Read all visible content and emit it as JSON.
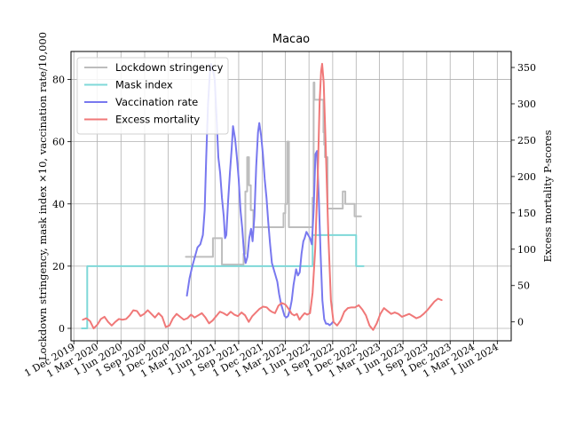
{
  "chart_data": {
    "type": "line",
    "title": "Macao",
    "ylabel_left": "Lockdown stringency, mask index ×10, vaccination rate/10,000",
    "ylabel_right": "Excess mortality P-scores",
    "ylim_left": [
      -4,
      89
    ],
    "ylim_right": [
      -26,
      372
    ],
    "yticks_left": [
      0,
      20,
      40,
      60,
      80
    ],
    "yticks_right": [
      0,
      50,
      100,
      150,
      200,
      250,
      300,
      350
    ],
    "xlim": [
      "2019-11-20",
      "2024-07-25"
    ],
    "xticks": [
      {
        "date": "2019-12-01",
        "label": "1 Dec 2019"
      },
      {
        "date": "2020-03-01",
        "label": "1 Mar 2020"
      },
      {
        "date": "2020-06-01",
        "label": "1 Jun 2020"
      },
      {
        "date": "2020-09-01",
        "label": "1 Sep 2020"
      },
      {
        "date": "2020-12-01",
        "label": "1 Dec 2020"
      },
      {
        "date": "2021-03-01",
        "label": "1 Mar 2021"
      },
      {
        "date": "2021-06-01",
        "label": "1 Jun 2021"
      },
      {
        "date": "2021-09-01",
        "label": "1 Sep 2021"
      },
      {
        "date": "2021-12-01",
        "label": "1 Dec 2021"
      },
      {
        "date": "2022-03-01",
        "label": "1 Mar 2022"
      },
      {
        "date": "2022-06-01",
        "label": "1 Jun 2022"
      },
      {
        "date": "2022-09-01",
        "label": "1 Sep 2022"
      },
      {
        "date": "2022-12-01",
        "label": "1 Dec 2022"
      },
      {
        "date": "2023-03-01",
        "label": "1 Mar 2023"
      },
      {
        "date": "2023-06-01",
        "label": "1 Jun 2023"
      },
      {
        "date": "2023-09-01",
        "label": "1 Sep 2023"
      },
      {
        "date": "2023-12-01",
        "label": "1 Dec 2023"
      },
      {
        "date": "2024-03-01",
        "label": "1 Mar 2024"
      },
      {
        "date": "2024-06-01",
        "label": "1 Jun 2024"
      }
    ],
    "grid": true,
    "legend_position": "top-left",
    "series": [
      {
        "name": "Lockdown stringency",
        "color": "#bdbdbd",
        "axis": "left",
        "step": true,
        "points": [
          [
            "2021-02-08",
            23
          ],
          [
            "2021-05-24",
            23
          ],
          [
            "2021-05-24",
            29
          ],
          [
            "2021-06-28",
            29
          ],
          [
            "2021-06-28",
            20.5
          ],
          [
            "2021-09-20",
            20.5
          ],
          [
            "2021-09-20",
            24
          ],
          [
            "2021-09-27",
            24
          ],
          [
            "2021-09-27",
            44
          ],
          [
            "2021-10-04",
            44
          ],
          [
            "2021-10-04",
            55
          ],
          [
            "2021-10-11",
            55
          ],
          [
            "2021-10-11",
            46
          ],
          [
            "2021-10-18",
            46
          ],
          [
            "2021-10-18",
            38
          ],
          [
            "2021-10-28",
            38
          ],
          [
            "2021-10-28",
            32.5
          ],
          [
            "2022-02-22",
            32.5
          ],
          [
            "2022-02-22",
            37
          ],
          [
            "2022-03-01",
            37
          ],
          [
            "2022-03-01",
            40
          ],
          [
            "2022-03-08",
            40
          ],
          [
            "2022-03-08",
            60
          ],
          [
            "2022-03-15",
            60
          ],
          [
            "2022-03-15",
            32.5
          ],
          [
            "2022-06-15",
            32.5
          ],
          [
            "2022-06-15",
            42
          ],
          [
            "2022-06-19",
            42
          ],
          [
            "2022-06-19",
            79
          ],
          [
            "2022-06-22",
            79
          ],
          [
            "2022-06-22",
            73.5
          ],
          [
            "2022-07-27",
            73.5
          ],
          [
            "2022-07-27",
            63
          ],
          [
            "2022-07-30",
            63
          ],
          [
            "2022-07-30",
            59
          ],
          [
            "2022-08-02",
            59
          ],
          [
            "2022-08-02",
            55
          ],
          [
            "2022-08-12",
            55
          ],
          [
            "2022-08-12",
            38.5
          ],
          [
            "2022-10-10",
            38.5
          ],
          [
            "2022-10-10",
            44
          ],
          [
            "2022-10-20",
            44
          ],
          [
            "2022-10-20",
            40
          ],
          [
            "2022-11-25",
            40
          ],
          [
            "2022-11-25",
            36
          ],
          [
            "2022-12-20",
            36
          ]
        ]
      },
      {
        "name": "Mask index",
        "color": "#7fd8d8",
        "axis": "left",
        "step": true,
        "points": [
          [
            "2020-01-01",
            0
          ],
          [
            "2020-01-22",
            0
          ],
          [
            "2020-01-22",
            20
          ],
          [
            "2022-06-15",
            20
          ],
          [
            "2022-06-15",
            30
          ],
          [
            "2022-12-01",
            30
          ],
          [
            "2022-12-01",
            20
          ],
          [
            "2022-12-30",
            20
          ]
        ]
      },
      {
        "name": "Vaccination rate",
        "color": "#7878ef",
        "axis": "left",
        "step": false,
        "points": [
          [
            "2021-02-12",
            10.5
          ],
          [
            "2021-02-22",
            16
          ],
          [
            "2021-03-05",
            20
          ],
          [
            "2021-03-15",
            23
          ],
          [
            "2021-03-25",
            26
          ],
          [
            "2021-04-05",
            27
          ],
          [
            "2021-04-15",
            30
          ],
          [
            "2021-04-22",
            38
          ],
          [
            "2021-04-28",
            55
          ],
          [
            "2021-05-05",
            72
          ],
          [
            "2021-05-12",
            82
          ],
          [
            "2021-05-17",
            85
          ],
          [
            "2021-05-24",
            83
          ],
          [
            "2021-05-31",
            80
          ],
          [
            "2021-06-07",
            68
          ],
          [
            "2021-06-14",
            55
          ],
          [
            "2021-06-21",
            50
          ],
          [
            "2021-06-28",
            42
          ],
          [
            "2021-07-05",
            36
          ],
          [
            "2021-07-10",
            29
          ],
          [
            "2021-07-15",
            30
          ],
          [
            "2021-07-22",
            41
          ],
          [
            "2021-07-29",
            50
          ],
          [
            "2021-08-05",
            58
          ],
          [
            "2021-08-10",
            65
          ],
          [
            "2021-08-18",
            61
          ],
          [
            "2021-08-25",
            55
          ],
          [
            "2021-09-01",
            48
          ],
          [
            "2021-09-08",
            38
          ],
          [
            "2021-09-15",
            32
          ],
          [
            "2021-09-22",
            24
          ],
          [
            "2021-09-28",
            21
          ],
          [
            "2021-10-05",
            23
          ],
          [
            "2021-10-12",
            29
          ],
          [
            "2021-10-19",
            32
          ],
          [
            "2021-10-25",
            28
          ],
          [
            "2021-11-01",
            36
          ],
          [
            "2021-11-08",
            52
          ],
          [
            "2021-11-15",
            63
          ],
          [
            "2021-11-20",
            66
          ],
          [
            "2021-11-27",
            62
          ],
          [
            "2021-12-04",
            56
          ],
          [
            "2021-12-11",
            48
          ],
          [
            "2021-12-18",
            42
          ],
          [
            "2021-12-25",
            34
          ],
          [
            "2022-01-01",
            27
          ],
          [
            "2022-01-08",
            21
          ],
          [
            "2022-01-15",
            19
          ],
          [
            "2022-01-22",
            17
          ],
          [
            "2022-01-29",
            15
          ],
          [
            "2022-02-05",
            11
          ],
          [
            "2022-02-12",
            8
          ],
          [
            "2022-02-19",
            6
          ],
          [
            "2022-02-26",
            4
          ],
          [
            "2022-03-05",
            3.5
          ],
          [
            "2022-03-12",
            4
          ],
          [
            "2022-03-19",
            6
          ],
          [
            "2022-03-26",
            9
          ],
          [
            "2022-04-02",
            14
          ],
          [
            "2022-04-12",
            19
          ],
          [
            "2022-04-19",
            17
          ],
          [
            "2022-04-26",
            18
          ],
          [
            "2022-05-03",
            24
          ],
          [
            "2022-05-10",
            28
          ],
          [
            "2022-05-15",
            29
          ],
          [
            "2022-05-22",
            31
          ],
          [
            "2022-05-29",
            30
          ],
          [
            "2022-06-05",
            29
          ],
          [
            "2022-06-12",
            27
          ],
          [
            "2022-06-19",
            38
          ],
          [
            "2022-06-26",
            56
          ],
          [
            "2022-07-02",
            57
          ],
          [
            "2022-07-09",
            42
          ],
          [
            "2022-07-16",
            24
          ],
          [
            "2022-07-23",
            9
          ],
          [
            "2022-07-30",
            3
          ],
          [
            "2022-08-06",
            1.5
          ],
          [
            "2022-08-13",
            1.5
          ],
          [
            "2022-08-20",
            1
          ],
          [
            "2022-08-27",
            1.5
          ],
          [
            "2022-09-03",
            2.2
          ]
        ]
      },
      {
        "name": "Excess mortality",
        "color": "#f07878",
        "axis": "right",
        "step": false,
        "points": [
          [
            "2020-01-05",
            3
          ],
          [
            "2020-01-19",
            5
          ],
          [
            "2020-02-02",
            1
          ],
          [
            "2020-02-16",
            -9
          ],
          [
            "2020-03-01",
            -4
          ],
          [
            "2020-03-15",
            4
          ],
          [
            "2020-03-29",
            7
          ],
          [
            "2020-04-12",
            0
          ],
          [
            "2020-04-26",
            -5
          ],
          [
            "2020-05-10",
            0
          ],
          [
            "2020-05-24",
            4
          ],
          [
            "2020-06-07",
            3
          ],
          [
            "2020-06-21",
            4
          ],
          [
            "2020-07-05",
            9
          ],
          [
            "2020-07-19",
            16
          ],
          [
            "2020-08-02",
            15
          ],
          [
            "2020-08-16",
            8
          ],
          [
            "2020-08-30",
            11
          ],
          [
            "2020-09-13",
            16
          ],
          [
            "2020-09-27",
            11
          ],
          [
            "2020-10-11",
            6
          ],
          [
            "2020-10-25",
            12
          ],
          [
            "2020-11-08",
            7
          ],
          [
            "2020-11-22",
            -7
          ],
          [
            "2020-12-06",
            -5
          ],
          [
            "2020-12-20",
            5
          ],
          [
            "2021-01-03",
            11
          ],
          [
            "2021-01-17",
            7
          ],
          [
            "2021-01-31",
            3
          ],
          [
            "2021-02-14",
            5
          ],
          [
            "2021-02-28",
            10
          ],
          [
            "2021-03-14",
            6
          ],
          [
            "2021-03-28",
            9
          ],
          [
            "2021-04-11",
            12
          ],
          [
            "2021-04-25",
            6
          ],
          [
            "2021-05-09",
            -2
          ],
          [
            "2021-05-23",
            2
          ],
          [
            "2021-06-06",
            8
          ],
          [
            "2021-06-20",
            14
          ],
          [
            "2021-07-04",
            12
          ],
          [
            "2021-07-18",
            9
          ],
          [
            "2021-08-01",
            14
          ],
          [
            "2021-08-15",
            10
          ],
          [
            "2021-08-29",
            8
          ],
          [
            "2021-09-12",
            13
          ],
          [
            "2021-09-26",
            9
          ],
          [
            "2021-10-10",
            0
          ],
          [
            "2021-10-24",
            8
          ],
          [
            "2021-11-07",
            13
          ],
          [
            "2021-11-21",
            18
          ],
          [
            "2021-12-05",
            21
          ],
          [
            "2021-12-19",
            20
          ],
          [
            "2021-12-30",
            16
          ],
          [
            "2022-01-07",
            14
          ],
          [
            "2022-01-20",
            12
          ],
          [
            "2022-02-02",
            22
          ],
          [
            "2022-02-15",
            26
          ],
          [
            "2022-03-01",
            24
          ],
          [
            "2022-03-14",
            18
          ],
          [
            "2022-03-26",
            11
          ],
          [
            "2022-04-05",
            9
          ],
          [
            "2022-04-15",
            11
          ],
          [
            "2022-04-25",
            3
          ],
          [
            "2022-05-05",
            8
          ],
          [
            "2022-05-15",
            12
          ],
          [
            "2022-05-25",
            10
          ],
          [
            "2022-06-05",
            12
          ],
          [
            "2022-06-15",
            40
          ],
          [
            "2022-06-25",
            100
          ],
          [
            "2022-07-05",
            200
          ],
          [
            "2022-07-12",
            300
          ],
          [
            "2022-07-18",
            345
          ],
          [
            "2022-07-22",
            355
          ],
          [
            "2022-07-28",
            330
          ],
          [
            "2022-08-05",
            240
          ],
          [
            "2022-08-15",
            120
          ],
          [
            "2022-08-25",
            30
          ],
          [
            "2022-09-04",
            0
          ],
          [
            "2022-09-18",
            -5
          ],
          [
            "2022-10-02",
            2
          ],
          [
            "2022-10-16",
            14
          ],
          [
            "2022-10-30",
            19
          ],
          [
            "2022-11-13",
            20
          ],
          [
            "2022-11-27",
            20
          ],
          [
            "2022-12-11",
            23
          ],
          [
            "2022-12-25",
            17
          ],
          [
            "2023-01-08",
            9
          ],
          [
            "2023-01-22",
            -5
          ],
          [
            "2023-02-05",
            -11
          ],
          [
            "2023-02-19",
            -2
          ],
          [
            "2023-03-05",
            11
          ],
          [
            "2023-03-19",
            19
          ],
          [
            "2023-04-02",
            15
          ],
          [
            "2023-04-16",
            11
          ],
          [
            "2023-04-30",
            13
          ],
          [
            "2023-05-14",
            11
          ],
          [
            "2023-05-28",
            7
          ],
          [
            "2023-06-11",
            9
          ],
          [
            "2023-06-25",
            11
          ],
          [
            "2023-07-09",
            8
          ],
          [
            "2023-07-23",
            5
          ],
          [
            "2023-08-06",
            7
          ],
          [
            "2023-08-20",
            11
          ],
          [
            "2023-09-03",
            16
          ],
          [
            "2023-09-17",
            22
          ],
          [
            "2023-10-01",
            28
          ],
          [
            "2023-10-15",
            32
          ],
          [
            "2023-10-29",
            30
          ]
        ]
      }
    ]
  }
}
